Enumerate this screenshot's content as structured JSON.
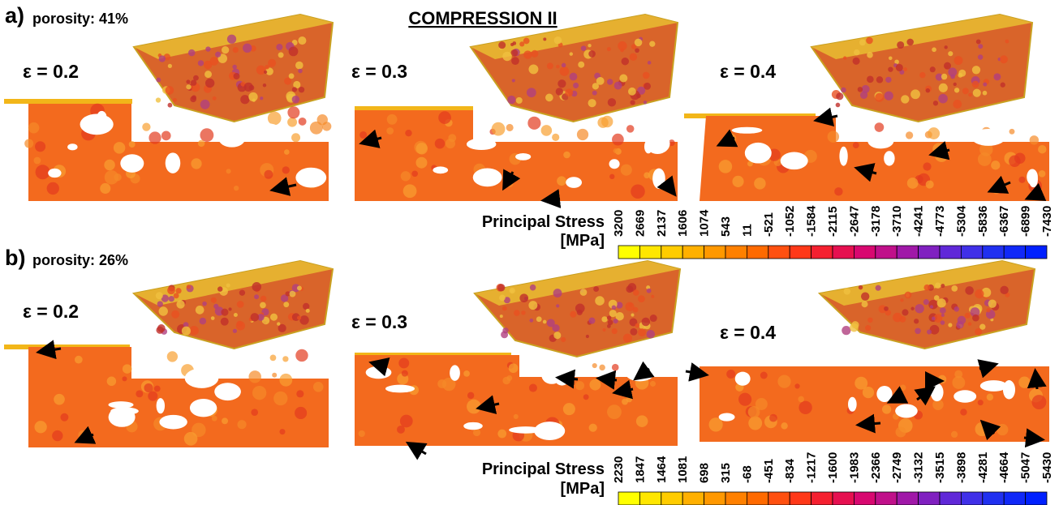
{
  "title": "COMPRESSION II",
  "panels": [
    {
      "label": "a)",
      "porosity": "porosity: 41%",
      "strains": [
        "ε = 0.2",
        "ε = 0.3",
        "ε = 0.4"
      ],
      "colorbar": {
        "title": "Principal Stress",
        "unit": "[MPa]",
        "ticks": [
          3200,
          2669,
          2137,
          1606,
          1074,
          543,
          11,
          -521,
          -1052,
          -1584,
          -2115,
          -2647,
          -3178,
          -3710,
          -4241,
          -4773,
          -5304,
          -5836,
          -6367,
          -6899,
          -7430
        ]
      }
    },
    {
      "label": "b)",
      "porosity": "porosity: 26%",
      "strains": [
        "ε = 0.2",
        "ε = 0.3",
        "ε = 0.4"
      ],
      "colorbar": {
        "title": "Principal Stress",
        "unit": "[MPa]",
        "ticks": [
          2230,
          1847,
          1464,
          1081,
          698,
          315,
          -68,
          -451,
          -834,
          -1217,
          -1600,
          -1983,
          -2366,
          -2749,
          -3132,
          -3515,
          -3898,
          -4281,
          -4664,
          -5047,
          -5430
        ]
      }
    }
  ]
}
